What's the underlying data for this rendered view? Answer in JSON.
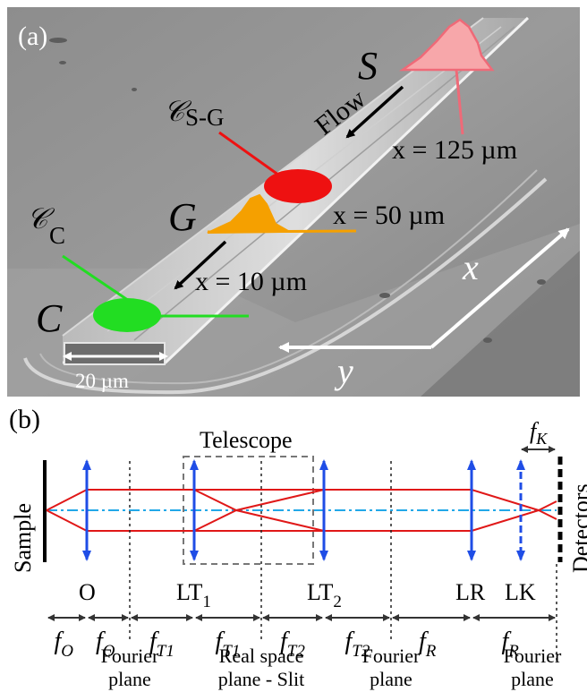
{
  "panel_a": {
    "panel_label": "(a)",
    "flow_label": "Flow",
    "points": [
      {
        "letter": "S",
        "position": "x = 125 µm"
      },
      {
        "letter": "G",
        "position": "x = 50 µm"
      },
      {
        "letter": "C",
        "position": "x = 10 µm"
      }
    ],
    "curve_sg": {
      "script": "𝒞",
      "sub": "S-G"
    },
    "curve_c": {
      "script": "𝒞",
      "sub": "C"
    },
    "scale_bar": "20 µm",
    "axis_x": "x",
    "axis_y": "y",
    "colors": {
      "S_peak": "#f7a7aa",
      "G_peak": "#f5a000",
      "sg_spot": "#ee1111",
      "c_spot": "#22dd22"
    }
  },
  "panel_b": {
    "panel_label": "(b)",
    "telescope_label": "Telescope",
    "fk_label": "f",
    "fk_sub": "K",
    "sample_label": "Sample",
    "detectors_label": "Detectors",
    "lenses": [
      {
        "name": "O",
        "sub": ""
      },
      {
        "name": "LT",
        "sub": "1"
      },
      {
        "name": "LT",
        "sub": "2"
      },
      {
        "name": "LR",
        "sub": ""
      },
      {
        "name": "LK",
        "sub": ""
      }
    ],
    "focal_segments": [
      {
        "f": "f",
        "sub": "O"
      },
      {
        "f": "f",
        "sub": "O"
      },
      {
        "f": "f",
        "sub": "T1"
      },
      {
        "f": "f",
        "sub": "T1"
      },
      {
        "f": "f",
        "sub": "T2"
      },
      {
        "f": "f",
        "sub": "T2"
      },
      {
        "f": "f",
        "sub": "R"
      },
      {
        "f": "f",
        "sub": "R"
      }
    ],
    "planes": [
      {
        "line1": "Fourier",
        "line2": "plane"
      },
      {
        "line1": "Real space",
        "line2": "plane - Slit"
      },
      {
        "line1": "Fourier",
        "line2": "plane"
      },
      {
        "line1": "Fourier",
        "line2": "plane"
      }
    ],
    "colors": {
      "lens": "#1f4de6",
      "beam": "#e01818",
      "axis": "#22a8e8"
    }
  }
}
